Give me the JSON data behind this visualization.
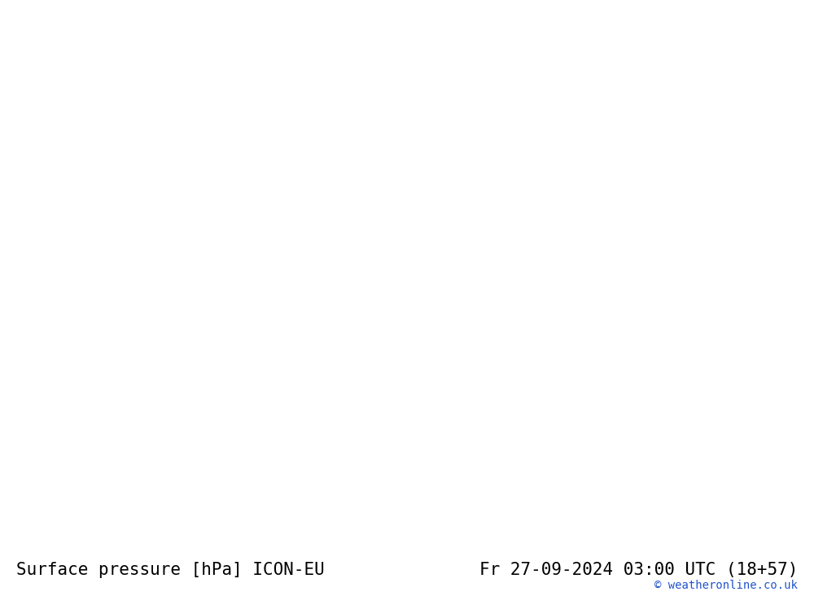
{
  "title_left": "Surface pressure [hPa] ICON-EU",
  "title_right": "Fr 27-09-2024 03:00 UTC (18+57)",
  "credit": "© weatheronline.co.uk",
  "bg_color": "#d8d8d8",
  "land_color": "#c8eac8",
  "border_color": "#aaaaaa",
  "isobar_color": "#2255cc",
  "black_isobar_color": "#000000",
  "red_isobar_color": "#dd2222",
  "font_color_title": "#000000",
  "font_color_credit": "#2255cc",
  "title_fontsize": 15,
  "credit_fontsize": 10,
  "isobar_fontsize": 9,
  "isobar_linewidth": 1.2,
  "figsize": [
    10.0,
    7.33
  ],
  "dpi": 100,
  "extent": [
    -25,
    20,
    40,
    72
  ]
}
